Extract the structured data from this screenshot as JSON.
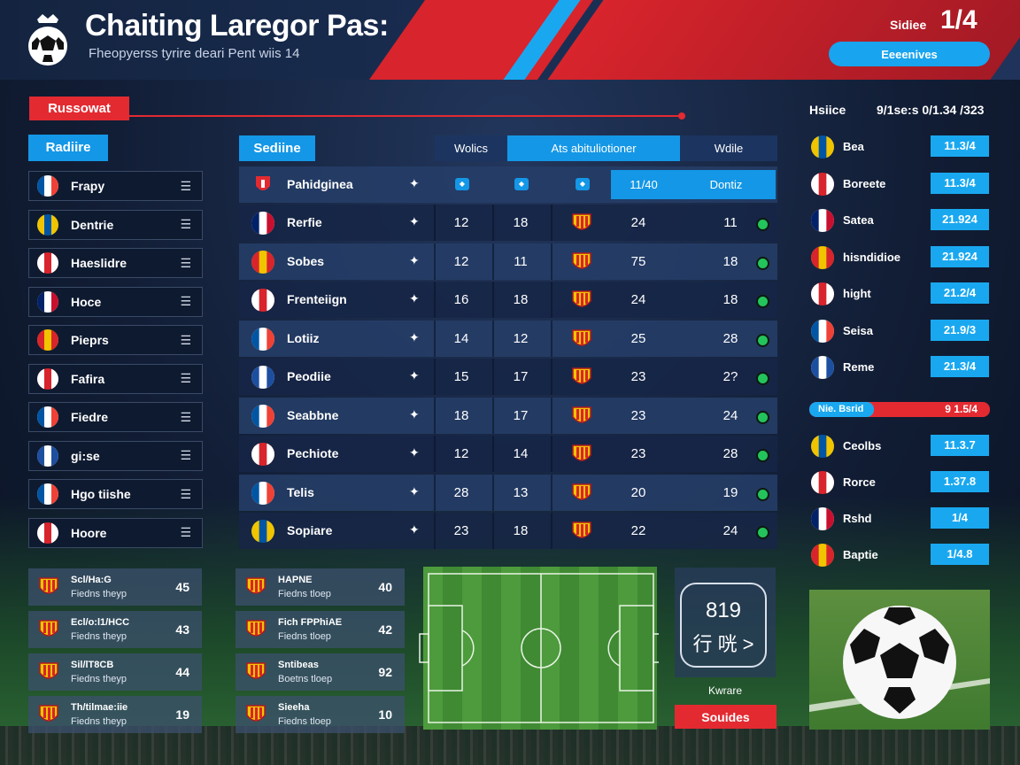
{
  "header": {
    "title": "Chaiting Laregor Pas:",
    "subtitle": "Fheopyerss tyrire deari Pent wiis 14",
    "score_label": "Sidiee",
    "score": "1/4",
    "button": "Eeeenives"
  },
  "section": {
    "tag": "Russowat"
  },
  "left_list": {
    "header": "Radiire",
    "items": [
      {
        "label": "Frapy",
        "icon": "menu-icon"
      },
      {
        "label": "Dentrie",
        "icon": "menu-icon"
      },
      {
        "label": "Haeslidre",
        "icon": "menu-icon"
      },
      {
        "label": "Hoce",
        "icon": "menu-icon"
      },
      {
        "label": "Pieprs",
        "icon": "menu-icon"
      },
      {
        "label": "Fafira",
        "icon": "menu-icon"
      },
      {
        "label": "Fiedre",
        "icon": "menu-icon"
      },
      {
        "label": "gi:se",
        "icon": "menu-icon"
      },
      {
        "label": "Hgo tiishe",
        "icon": "menu-icon"
      },
      {
        "label": "Hoore",
        "icon": "menu-icon"
      }
    ]
  },
  "table": {
    "side_header": "Sediine",
    "col_headers": [
      "Wolics",
      "Ats abituliotioner",
      "Wdile"
    ],
    "row0": {
      "name": "Pahidginea",
      "hl1": "11/40",
      "hl2": "Dontiz"
    },
    "rows": [
      {
        "name": "Rerfie",
        "c1": "12",
        "c2": "18",
        "c3": "24",
        "c4": "11"
      },
      {
        "name": "Sobes",
        "c1": "12",
        "c2": "11",
        "c3": "75",
        "c4": "18"
      },
      {
        "name": "Frenteiign",
        "c1": "16",
        "c2": "18",
        "c3": "24",
        "c4": "18"
      },
      {
        "name": "Lotiiz",
        "c1": "14",
        "c2": "12",
        "c3": "25",
        "c4": "28"
      },
      {
        "name": "Peodiie",
        "c1": "15",
        "c2": "17",
        "c3": "23",
        "c4": "2?"
      },
      {
        "name": "Seabbne",
        "c1": "18",
        "c2": "17",
        "c3": "23",
        "c4": "24"
      },
      {
        "name": "Pechiote",
        "c1": "12",
        "c2": "14",
        "c3": "23",
        "c4": "28"
      },
      {
        "name": "Telis",
        "c1": "28",
        "c2": "13",
        "c3": "20",
        "c4": "19"
      },
      {
        "name": "Sopiare",
        "c1": "23",
        "c2": "18",
        "c3": "22",
        "c4": "24"
      }
    ]
  },
  "right": {
    "title_left": "Hsiice",
    "title_right": "9/1se:s 0/1.34 /323",
    "rows_top": [
      {
        "name": "Bea",
        "value": "11.3/4"
      },
      {
        "name": "Boreete",
        "value": "11.3/4"
      },
      {
        "name": "Satea",
        "value": "21.924"
      },
      {
        "name": "hisndidioe",
        "value": "21.924"
      },
      {
        "name": "hight",
        "value": "21.2/4"
      },
      {
        "name": "Seisa",
        "value": "21.9/3"
      },
      {
        "name": "Reme",
        "value": "21.3/4"
      }
    ],
    "bar": {
      "left": "Nie. Bsrid",
      "right": "9 1.5/4",
      "progress": 0.36
    },
    "rows_bottom": [
      {
        "name": "Ceolbs",
        "value": "11.3.7"
      },
      {
        "name": "Rorce",
        "value": "1.37.8"
      },
      {
        "name": "Rshd",
        "value": "1/4"
      },
      {
        "name": "Baptie",
        "value": "1/4.8"
      }
    ]
  },
  "cards": {
    "col1": [
      {
        "t1": "Scl/Ha:G",
        "t2": "Fiedns   theyp",
        "n": "45"
      },
      {
        "t1": "Ecl/o:l1/HCC",
        "t2": "Fiedns   theyp",
        "n": "43"
      },
      {
        "t1": "Sil/lT8CB",
        "t2": "Fiedns   theyp",
        "n": "44"
      },
      {
        "t1": "Th/tilmae:iie",
        "t2": "Fiedns   theyp",
        "n": "19"
      }
    ],
    "col2": [
      {
        "t1": "HAPNE",
        "t2": "Fiedns   tloep",
        "n": "40"
      },
      {
        "t1": "Fich FPPhiAE",
        "t2": "Fiedns   tloep",
        "n": "42"
      },
      {
        "t1": "Sntibeas",
        "t2": "Boetns   tloep",
        "n": "92"
      },
      {
        "t1": "Sieeha",
        "t2": "Fiedns   tloep",
        "n": "10"
      }
    ]
  },
  "score": {
    "value": "819",
    "sub": "行 咣 >",
    "caption": "Kwrare",
    "button": "Souides"
  }
}
